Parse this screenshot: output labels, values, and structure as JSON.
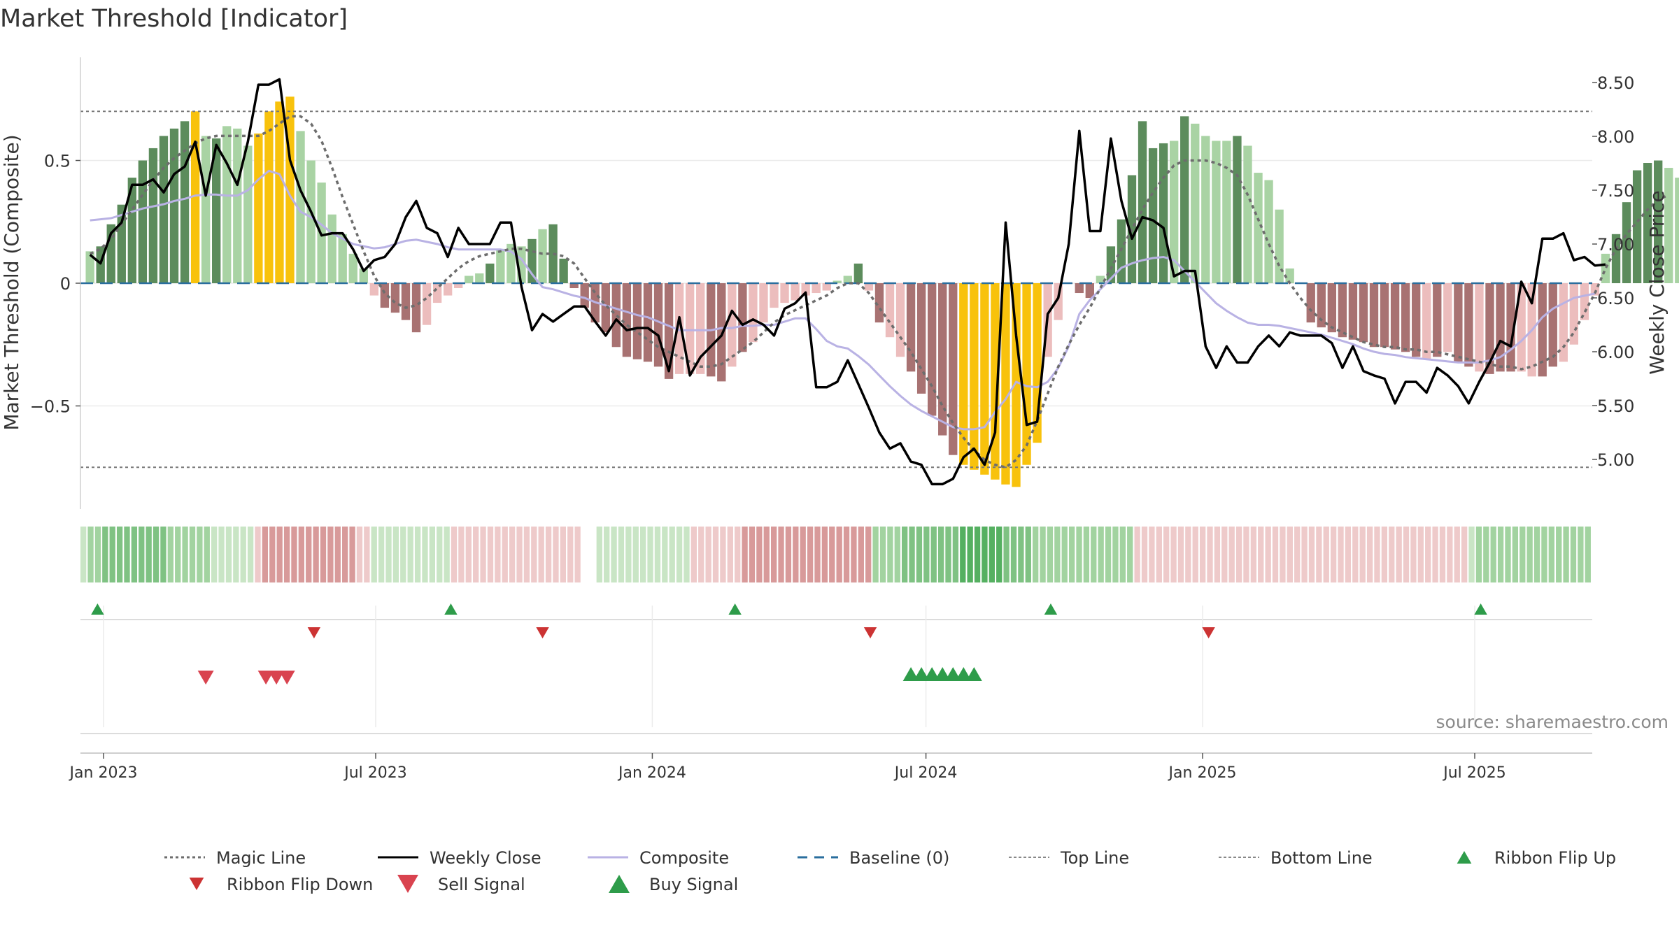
{
  "title": "Market Threshold [Indicator]",
  "source": "source: sharemaestro.com",
  "colors": {
    "dark_green": "#5c8c5c",
    "light_green": "#a9d3a4",
    "dark_red": "#a87272",
    "light_red": "#ecbdbd",
    "yellow": "#f8c20c",
    "close": "#000000",
    "composite": "#b9b2e4",
    "magic": "#6d6d6d",
    "baseline": "#2a6e9e",
    "flip_up": "#2e9c4a",
    "flip_down": "#cc3333",
    "sell": "#d9434f",
    "buy": "#2e9c4a"
  },
  "chart_data": {
    "type": "bar",
    "title": "Market Threshold [Indicator]",
    "ylabel_left": "Market Threshold (Composite)",
    "ylabel_right": "Weekly Close Price",
    "ylim_left": [
      -0.92,
      0.92
    ],
    "yticks_left": [
      {
        "v": 0.5,
        "label": "0.5"
      },
      {
        "v": 0,
        "label": "0"
      },
      {
        "v": -0.5,
        "label": "−0.5"
      }
    ],
    "ylim_right": [
      4.48,
      8.62
    ],
    "yticks_right": [
      "8.50",
      "8.00",
      "7.50",
      "7.00",
      "6.50",
      "6.00",
      "5.50",
      "5.00"
    ],
    "top_line": 0.7,
    "bottom_line": -0.75,
    "x_start": "2022-12-23",
    "x_ticks": [
      "Jan 2023",
      "Jul 2023",
      "Jan 2024",
      "Jul 2024",
      "Jan 2025",
      "Jul 2025"
    ],
    "x_tick_dates": [
      "2023-01-01",
      "2023-07-01",
      "2024-01-01",
      "2024-07-01",
      "2025-01-01",
      "2025-07-01"
    ],
    "bars": [
      0.13,
      0.15,
      0.24,
      0.32,
      0.43,
      0.5,
      0.55,
      0.6,
      0.63,
      0.66,
      0.7,
      0.6,
      0.59,
      0.64,
      0.63,
      0.56,
      0.61,
      0.7,
      0.74,
      0.76,
      0.62,
      0.5,
      0.41,
      0.28,
      0.2,
      0.12,
      0.06,
      -0.05,
      -0.1,
      -0.12,
      -0.15,
      -0.2,
      -0.17,
      -0.08,
      -0.05,
      -0.02,
      0.03,
      0.04,
      0.08,
      0.14,
      0.16,
      0.15,
      0.18,
      0.22,
      0.24,
      0.1,
      -0.02,
      -0.1,
      -0.16,
      -0.2,
      -0.26,
      -0.3,
      -0.31,
      -0.32,
      -0.34,
      -0.39,
      -0.37,
      -0.37,
      -0.37,
      -0.38,
      -0.4,
      -0.34,
      -0.28,
      -0.24,
      -0.16,
      -0.1,
      -0.08,
      -0.07,
      -0.05,
      -0.04,
      -0.03,
      0.01,
      0.03,
      0.08,
      -0.03,
      -0.16,
      -0.22,
      -0.3,
      -0.36,
      -0.45,
      -0.54,
      -0.62,
      -0.7,
      -0.74,
      -0.76,
      -0.78,
      -0.8,
      -0.82,
      -0.83,
      -0.74,
      -0.65,
      -0.3,
      -0.15,
      0,
      -0.04,
      -0.06,
      0.03,
      0.15,
      0.26,
      0.44,
      0.66,
      0.55,
      0.57,
      0.58,
      0.68,
      0.65,
      0.6,
      0.58,
      0.58,
      0.6,
      0.56,
      0.45,
      0.42,
      0.3,
      0.06,
      0,
      -0.16,
      -0.18,
      -0.2,
      -0.22,
      -0.23,
      -0.24,
      -0.26,
      -0.26,
      -0.27,
      -0.28,
      -0.3,
      -0.31,
      -0.3,
      -0.28,
      -0.32,
      -0.34,
      -0.36,
      -0.37,
      -0.36,
      -0.36,
      -0.36,
      -0.38,
      -0.38,
      -0.34,
      -0.32,
      -0.25,
      -0.15,
      -0.05,
      0.12,
      0.2,
      0.33,
      0.46,
      0.49,
      0.5,
      0.47,
      0.43,
      0.4
    ],
    "bar_colors": [
      "l",
      "d",
      "d",
      "d",
      "d",
      "d",
      "d",
      "d",
      "d",
      "d",
      "y",
      "l",
      "d",
      "l",
      "l",
      "l",
      "y",
      "y",
      "y",
      "y",
      "l",
      "l",
      "l",
      "l",
      "l",
      "l",
      "l",
      "r",
      "R",
      "R",
      "R",
      "R",
      "r",
      "r",
      "r",
      "r",
      "l",
      "l",
      "d",
      "l",
      "l",
      "l",
      "d",
      "l",
      "d",
      "d",
      "R",
      "R",
      "R",
      "R",
      "R",
      "R",
      "R",
      "R",
      "R",
      "R",
      "r",
      "r",
      "r",
      "R",
      "R",
      "r",
      "R",
      "r",
      "r",
      "r",
      "r",
      "r",
      "r",
      "r",
      "r",
      "l",
      "l",
      "d",
      "r",
      "R",
      "r",
      "r",
      "R",
      "R",
      "R",
      "R",
      "R",
      "y",
      "y",
      "y",
      "y",
      "y",
      "y",
      "y",
      "y",
      "r",
      "r",
      "r",
      "R",
      "R",
      "l",
      "d",
      "d",
      "d",
      "d",
      "d",
      "d",
      "l",
      "d",
      "l",
      "l",
      "l",
      "l",
      "d",
      "l",
      "l",
      "l",
      "l",
      "l",
      "R",
      "R",
      "R",
      "R",
      "R",
      "R",
      "R",
      "R",
      "R",
      "R",
      "R",
      "R",
      "r",
      "R",
      "r",
      "R",
      "R",
      "r",
      "R",
      "R",
      "R",
      "r",
      "r",
      "R",
      "R",
      "r",
      "r",
      "r",
      "r",
      "l",
      "d",
      "d",
      "d",
      "d",
      "d",
      "l",
      "l",
      "l"
    ],
    "weekly_close": [
      6.9,
      6.82,
      7.1,
      7.2,
      7.55,
      7.55,
      7.6,
      7.48,
      7.65,
      7.72,
      7.95,
      7.45,
      7.92,
      7.75,
      7.55,
      7.95,
      8.48,
      8.48,
      8.53,
      7.78,
      7.5,
      7.3,
      7.08,
      7.1,
      7.1,
      6.95,
      6.75,
      6.85,
      6.88,
      7.0,
      7.25,
      7.4,
      7.15,
      7.1,
      6.88,
      7.15,
      7.0,
      7.0,
      7.0,
      7.2,
      7.2,
      6.6,
      6.2,
      6.35,
      6.28,
      6.35,
      6.42,
      6.42,
      6.28,
      6.15,
      6.3,
      6.2,
      6.22,
      6.22,
      6.15,
      5.82,
      6.32,
      5.78,
      5.95,
      6.05,
      6.15,
      6.38,
      6.25,
      6.3,
      6.25,
      6.15,
      6.4,
      6.45,
      6.55,
      5.67,
      5.67,
      5.72,
      5.92,
      5.7,
      5.48,
      5.25,
      5.1,
      5.15,
      4.98,
      4.95,
      4.77,
      4.77,
      4.82,
      5.02,
      5.1,
      4.95,
      5.25,
      7.2,
      6.15,
      5.32,
      5.35,
      6.35,
      6.5,
      7.0,
      8.05,
      7.12,
      7.12,
      7.98,
      7.4,
      7.05,
      7.25,
      7.22,
      7.15,
      6.7,
      6.75,
      6.75,
      6.05,
      5.85,
      6.05,
      5.9,
      5.9,
      6.05,
      6.15,
      6.05,
      6.18,
      6.15,
      6.15,
      6.15,
      6.08,
      5.85,
      6.05,
      5.82,
      5.78,
      5.75,
      5.52,
      5.72,
      5.72,
      5.62,
      5.85,
      5.78,
      5.68,
      5.52,
      5.72,
      5.9,
      6.1,
      6.05,
      6.65,
      6.45,
      7.05,
      7.05,
      7.1,
      6.85,
      6.88,
      6.8,
      6.81
    ],
    "composite": [
      7.22,
      7.23,
      7.24,
      7.27,
      7.3,
      7.33,
      7.35,
      7.37,
      7.4,
      7.42,
      7.45,
      7.46,
      7.46,
      7.45,
      7.45,
      7.5,
      7.6,
      7.68,
      7.65,
      7.45,
      7.3,
      7.25,
      7.18,
      7.1,
      7.05,
      7.0,
      6.98,
      6.96,
      6.97,
      7.0,
      7.03,
      7.04,
      7.02,
      7.0,
      6.97,
      6.95,
      6.95,
      6.95,
      6.95,
      6.95,
      6.93,
      6.86,
      6.72,
      6.6,
      6.58,
      6.55,
      6.52,
      6.5,
      6.46,
      6.43,
      6.4,
      6.37,
      6.34,
      6.32,
      6.28,
      6.24,
      6.2,
      6.2,
      6.2,
      6.2,
      6.22,
      6.22,
      6.24,
      6.24,
      6.25,
      6.25,
      6.28,
      6.31,
      6.31,
      6.21,
      6.1,
      6.05,
      6.03,
      5.96,
      5.88,
      5.78,
      5.68,
      5.59,
      5.51,
      5.45,
      5.4,
      5.35,
      5.3,
      5.28,
      5.28,
      5.3,
      5.44,
      5.56,
      5.72,
      5.68,
      5.67,
      5.72,
      5.85,
      6.05,
      6.35,
      6.48,
      6.58,
      6.68,
      6.78,
      6.82,
      6.85,
      6.87,
      6.88,
      6.85,
      6.75,
      6.65,
      6.55,
      6.45,
      6.38,
      6.32,
      6.27,
      6.25,
      6.25,
      6.24,
      6.22,
      6.2,
      6.18,
      6.16,
      6.13,
      6.1,
      6.07,
      6.03,
      6.0,
      5.98,
      5.97,
      5.95,
      5.94,
      5.93,
      5.92,
      5.91,
      5.9,
      5.9,
      5.9,
      5.92,
      5.95,
      6.02,
      6.1,
      6.2,
      6.32,
      6.4,
      6.45,
      6.5,
      6.52,
      6.54
    ],
    "magic_line": [
      0.12,
      0.14,
      0.18,
      0.24,
      0.3,
      0.36,
      0.42,
      0.47,
      0.51,
      0.54,
      0.57,
      0.59,
      0.6,
      0.6,
      0.6,
      0.6,
      0.6,
      0.62,
      0.65,
      0.68,
      0.68,
      0.65,
      0.58,
      0.47,
      0.35,
      0.24,
      0.13,
      0.03,
      -0.04,
      -0.08,
      -0.1,
      -0.09,
      -0.06,
      -0.02,
      0.02,
      0.06,
      0.09,
      0.11,
      0.12,
      0.13,
      0.14,
      0.14,
      0.13,
      0.12,
      0.12,
      0.11,
      0.08,
      0.02,
      -0.04,
      -0.09,
      -0.13,
      -0.17,
      -0.2,
      -0.23,
      -0.26,
      -0.28,
      -0.3,
      -0.32,
      -0.34,
      -0.34,
      -0.33,
      -0.3,
      -0.27,
      -0.24,
      -0.2,
      -0.16,
      -0.13,
      -0.11,
      -0.09,
      -0.07,
      -0.05,
      -0.02,
      0,
      0,
      -0.04,
      -0.1,
      -0.16,
      -0.22,
      -0.28,
      -0.35,
      -0.42,
      -0.5,
      -0.57,
      -0.63,
      -0.68,
      -0.72,
      -0.74,
      -0.75,
      -0.72,
      -0.66,
      -0.56,
      -0.45,
      -0.34,
      -0.25,
      -0.17,
      -0.1,
      -0.02,
      0.06,
      0.14,
      0.22,
      0.3,
      0.37,
      0.43,
      0.48,
      0.5,
      0.5,
      0.5,
      0.49,
      0.47,
      0.44,
      0.36,
      0.26,
      0.16,
      0.07,
      0,
      -0.06,
      -0.11,
      -0.15,
      -0.18,
      -0.2,
      -0.22,
      -0.24,
      -0.25,
      -0.26,
      -0.26,
      -0.27,
      -0.27,
      -0.28,
      -0.28,
      -0.29,
      -0.3,
      -0.31,
      -0.32,
      -0.33,
      -0.34,
      -0.34,
      -0.35,
      -0.34,
      -0.32,
      -0.3,
      -0.26,
      -0.2,
      -0.12,
      -0.04,
      0.06,
      0.14,
      0.2,
      0.25,
      0.3,
      0.34,
      0.36
    ],
    "ribbon": [
      1,
      2,
      2,
      3,
      3,
      3,
      3,
      3,
      3,
      3,
      3,
      3,
      2,
      2,
      2,
      2,
      2,
      2,
      1,
      1,
      1,
      1,
      1,
      1,
      -1,
      -2,
      -2,
      -2,
      -2,
      -2,
      -2,
      -2,
      -2,
      -2,
      -2,
      -2,
      -2,
      -2,
      -1,
      -1,
      1,
      1,
      1,
      1,
      1,
      1,
      1,
      1,
      1,
      1,
      1,
      -1,
      -1,
      -1,
      -1,
      -1,
      -1,
      -1,
      -1,
      -1,
      -1,
      -1,
      -1,
      -1,
      -1,
      -1,
      -1,
      -1,
      -1,
      0,
      0,
      1,
      1,
      1,
      1,
      1,
      1,
      1,
      1,
      1,
      1,
      1,
      1,
      1,
      -1,
      -1,
      -1,
      -1,
      -1,
      -1,
      -1,
      -2,
      -2,
      -2,
      -2,
      -2,
      -2,
      -2,
      -2,
      -2,
      -2,
      -2,
      -2,
      -2,
      -2,
      -2,
      -2,
      -2,
      -2,
      2,
      2,
      2,
      2,
      3,
      3,
      3,
      3,
      3,
      3,
      3,
      3,
      4,
      4,
      4,
      4,
      4,
      4,
      3,
      3,
      3,
      3,
      2,
      2,
      2,
      2,
      2,
      2,
      2,
      2,
      2,
      2,
      2,
      2,
      2,
      2,
      -1,
      -1,
      -1,
      -1,
      -1,
      -1,
      -1,
      -1,
      -1,
      -1,
      -1,
      -1,
      -1,
      -1,
      -1,
      -1,
      -1,
      -1,
      -1,
      -1,
      -1,
      -1,
      -1,
      -1,
      -1,
      -1,
      -1,
      -1,
      -1,
      -1,
      -1,
      -1,
      -1,
      -1,
      -1,
      -1,
      -1,
      -1,
      -1,
      -1,
      -1,
      -1,
      -1,
      -1,
      -1,
      -1,
      1,
      2,
      2,
      2,
      2,
      2,
      2,
      2,
      2,
      2,
      2,
      2,
      2,
      2,
      2,
      2,
      2
    ],
    "ribbon_flip_up": [
      "2022-12-28",
      "2023-08-20",
      "2024-02-25",
      "2024-09-22",
      "2025-07-05"
    ],
    "ribbon_flip_down": [
      "2023-05-21",
      "2023-10-20",
      "2024-05-25",
      "2025-01-05"
    ],
    "sell_signals": [
      "2023-03-10",
      "2023-04-19",
      "2023-04-26",
      "2023-05-03"
    ],
    "buy_signals": [
      "2024-06-21",
      "2024-06-28",
      "2024-07-05",
      "2024-07-12",
      "2024-07-19",
      "2024-07-26",
      "2024-08-02"
    ],
    "legend": [
      {
        "label": "Magic Line",
        "kind": "dotted",
        "color": "#6d6d6d"
      },
      {
        "label": "Weekly Close",
        "kind": "solid",
        "color": "#000000"
      },
      {
        "label": "Composite",
        "kind": "solid",
        "color": "#b9b2e4"
      },
      {
        "label": "Baseline (0)",
        "kind": "dashed",
        "color": "#2a6e9e"
      },
      {
        "label": "Top Line",
        "kind": "fine",
        "color": "#888888"
      },
      {
        "label": "Bottom Line",
        "kind": "fine",
        "color": "#888888"
      },
      {
        "label": "Ribbon Flip Up",
        "kind": "tri-up",
        "color": "#2e9c4a"
      },
      {
        "label": "Ribbon Flip Down",
        "kind": "tri-down",
        "color": "#cc3333"
      },
      {
        "label": "Sell Signal",
        "kind": "tri-down",
        "color": "#d9434f"
      },
      {
        "label": "Buy Signal",
        "kind": "tri-up",
        "color": "#2e9c4a"
      }
    ]
  }
}
